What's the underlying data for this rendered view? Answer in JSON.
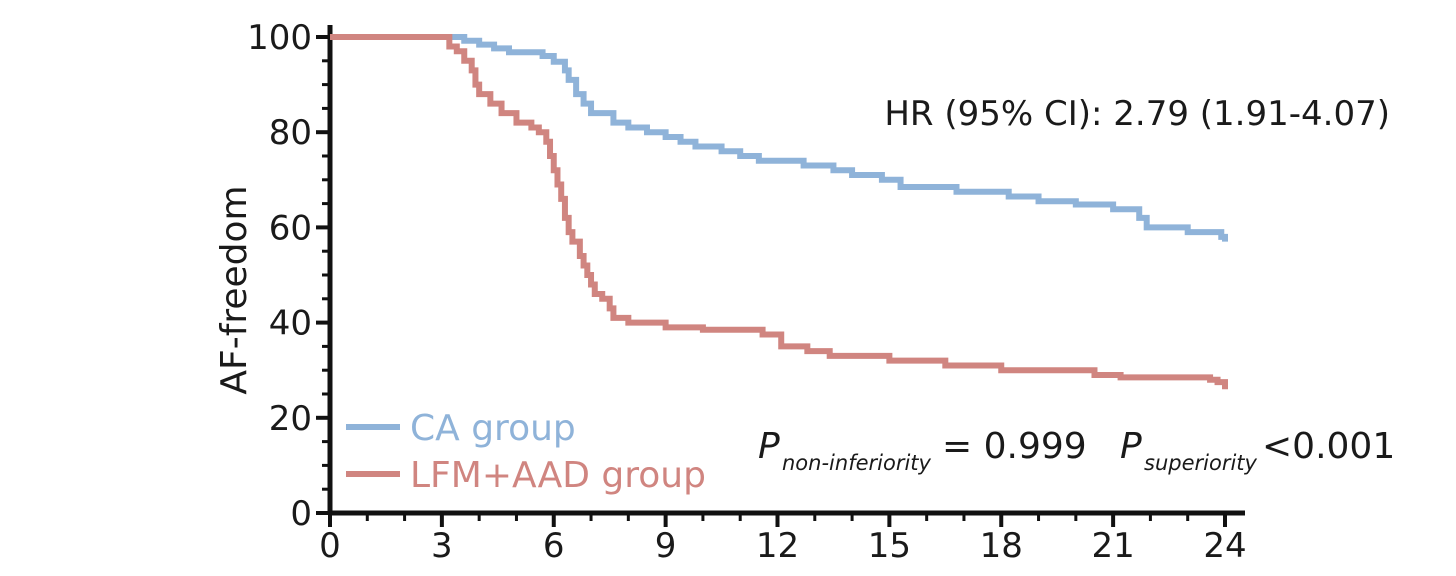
{
  "chart_data": {
    "type": "line",
    "step": true,
    "ylabel": "AF-freedom",
    "xlabel": "",
    "xlim": [
      0,
      24
    ],
    "ylim": [
      0,
      100
    ],
    "x_ticks": [
      0,
      3,
      6,
      9,
      12,
      15,
      18,
      21,
      24
    ],
    "y_ticks": [
      0,
      20,
      40,
      60,
      80,
      100
    ],
    "grid": false,
    "legend_position": "bottom-left",
    "annotations": {
      "hr": "HR (95% CI): 2.79 (1.91-4.07)",
      "p_letter": "P",
      "p_noninf_sub": "non-inferiority",
      "p_noninf_value": "= 0.999",
      "p_sup_sub": "superiority",
      "p_sup_value": "<0.001"
    },
    "series": [
      {
        "name": "CA group",
        "color": "#8fb3d9",
        "points": [
          [
            0,
            100
          ],
          [
            3,
            100
          ],
          [
            3.6,
            99.2
          ],
          [
            4,
            98.4
          ],
          [
            4.4,
            97.6
          ],
          [
            4.8,
            96.8
          ],
          [
            5.7,
            96
          ],
          [
            6,
            94.8
          ],
          [
            6.3,
            93
          ],
          [
            6.4,
            91
          ],
          [
            6.6,
            88
          ],
          [
            6.8,
            86
          ],
          [
            7,
            84
          ],
          [
            7.6,
            82
          ],
          [
            8,
            81
          ],
          [
            8.5,
            80
          ],
          [
            9,
            79
          ],
          [
            9.4,
            78
          ],
          [
            9.8,
            77
          ],
          [
            10.5,
            76
          ],
          [
            11,
            75
          ],
          [
            11.5,
            74
          ],
          [
            12.7,
            73
          ],
          [
            13.5,
            72
          ],
          [
            14,
            71
          ],
          [
            14.8,
            70
          ],
          [
            15.3,
            68.5
          ],
          [
            16.8,
            67.5
          ],
          [
            18.2,
            66.5
          ],
          [
            19,
            65.5
          ],
          [
            20,
            64.8
          ],
          [
            21,
            63.8
          ],
          [
            21.7,
            62
          ],
          [
            21.9,
            60
          ],
          [
            23,
            59
          ],
          [
            23.9,
            58
          ],
          [
            24,
            57
          ]
        ]
      },
      {
        "name": "LFM+AAD group",
        "color": "#d08580",
        "points": [
          [
            0,
            100
          ],
          [
            3,
            100
          ],
          [
            3.2,
            98
          ],
          [
            3.4,
            97
          ],
          [
            3.6,
            95
          ],
          [
            3.8,
            93
          ],
          [
            3.9,
            90
          ],
          [
            4,
            88
          ],
          [
            4.3,
            86
          ],
          [
            4.6,
            84
          ],
          [
            5,
            82
          ],
          [
            5.4,
            81
          ],
          [
            5.6,
            80
          ],
          [
            5.8,
            78
          ],
          [
            5.9,
            75
          ],
          [
            6,
            72
          ],
          [
            6.1,
            69
          ],
          [
            6.2,
            66
          ],
          [
            6.3,
            62
          ],
          [
            6.4,
            59
          ],
          [
            6.5,
            57
          ],
          [
            6.7,
            54
          ],
          [
            6.8,
            52
          ],
          [
            6.9,
            50
          ],
          [
            7,
            48
          ],
          [
            7.1,
            46
          ],
          [
            7.3,
            45
          ],
          [
            7.5,
            43
          ],
          [
            7.6,
            41
          ],
          [
            8,
            40
          ],
          [
            9,
            39
          ],
          [
            10,
            38.5
          ],
          [
            11.6,
            37.5
          ],
          [
            12.1,
            35
          ],
          [
            12.8,
            34
          ],
          [
            13.4,
            33
          ],
          [
            15,
            32
          ],
          [
            16.5,
            31
          ],
          [
            18,
            30
          ],
          [
            20.5,
            29
          ],
          [
            21.2,
            28.5
          ],
          [
            23.6,
            28
          ],
          [
            23.8,
            27.5
          ],
          [
            24,
            26
          ]
        ]
      }
    ]
  }
}
